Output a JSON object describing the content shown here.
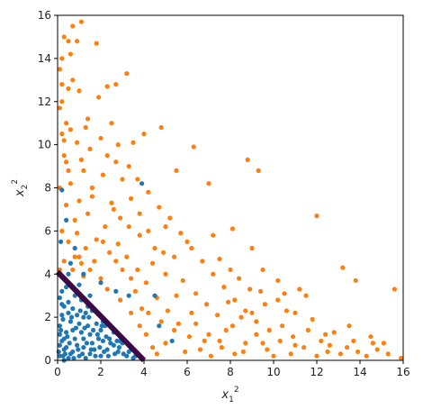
{
  "chart_data": {
    "type": "scatter",
    "title": "",
    "xlabel": "x",
    "xlabel_sub": "1",
    "xlabel_sup": "2",
    "ylabel": "x",
    "ylabel_sub": "2",
    "ylabel_sup": "2",
    "xlim": [
      0,
      16
    ],
    "ylim": [
      0,
      16
    ],
    "xticks": [
      "0",
      "2",
      "4",
      "6",
      "8",
      "10",
      "12",
      "14",
      "16"
    ],
    "yticks": [
      "0",
      "2",
      "4",
      "6",
      "8",
      "10",
      "12",
      "14",
      "16"
    ],
    "grid": false,
    "legend": "none",
    "colors": {
      "class_inner": "#1f77b4",
      "class_outer": "#ff7f0e",
      "boundary": "#3b0a45"
    },
    "series": [
      {
        "values": [
          [
            0.1,
            0.2
          ],
          [
            0.3,
            0.5
          ],
          [
            0.5,
            0.1
          ],
          [
            0.2,
            0.9
          ],
          [
            0.7,
            0.4
          ],
          [
            1.0,
            0.2
          ],
          [
            0.4,
            1.3
          ],
          [
            0.1,
            1.6
          ],
          [
            0.8,
            1.0
          ],
          [
            1.2,
            0.6
          ],
          [
            1.5,
            0.3
          ],
          [
            0.2,
            2.1
          ],
          [
            0.6,
            1.8
          ],
          [
            1.1,
            1.3
          ],
          [
            1.6,
            0.8
          ],
          [
            2.0,
            0.2
          ],
          [
            0.3,
            2.5
          ],
          [
            0.9,
            2.1
          ],
          [
            1.4,
            1.6
          ],
          [
            1.9,
            1.0
          ],
          [
            2.3,
            0.5
          ],
          [
            0.1,
            2.9
          ],
          [
            0.5,
            2.7
          ],
          [
            1.3,
            2.2
          ],
          [
            1.8,
            1.7
          ],
          [
            2.4,
            1.0
          ],
          [
            2.8,
            0.4
          ],
          [
            3.2,
            0.2
          ],
          [
            0.2,
            3.2
          ],
          [
            0.8,
            3.0
          ],
          [
            1.1,
            2.8
          ],
          [
            1.6,
            2.3
          ],
          [
            2.1,
            1.8
          ],
          [
            2.6,
            1.3
          ],
          [
            3.0,
            0.8
          ],
          [
            3.4,
            0.5
          ],
          [
            3.6,
            0.2
          ],
          [
            0.3,
            0.0
          ],
          [
            0.6,
            0.3
          ],
          [
            1.3,
            0.1
          ],
          [
            0.4,
            0.6
          ],
          [
            0.9,
            0.7
          ],
          [
            1.7,
            0.5
          ],
          [
            0.1,
            1.2
          ],
          [
            0.3,
            1.0
          ],
          [
            0.7,
            1.4
          ],
          [
            1.2,
            1.0
          ],
          [
            2.1,
            0.9
          ],
          [
            0.5,
            2.2
          ],
          [
            1.0,
            1.7
          ],
          [
            1.5,
            1.2
          ],
          [
            2.6,
            0.7
          ],
          [
            0.2,
            2.6
          ],
          [
            0.7,
            2.4
          ],
          [
            1.2,
            2.0
          ],
          [
            2.0,
            1.4
          ],
          [
            2.9,
            0.9
          ],
          [
            0.4,
            3.4
          ],
          [
            1.4,
            2.5
          ],
          [
            2.2,
            1.6
          ],
          [
            0.05,
            0.4
          ],
          [
            0.15,
            1.4
          ],
          [
            0.25,
            1.9
          ],
          [
            0.35,
            0.3
          ],
          [
            0.45,
            1.1
          ],
          [
            0.55,
            0.8
          ],
          [
            0.65,
            2.0
          ],
          [
            0.75,
            0.1
          ],
          [
            0.85,
            1.5
          ],
          [
            0.95,
            0.5
          ],
          [
            1.05,
            2.3
          ],
          [
            1.15,
            0.3
          ],
          [
            1.25,
            1.5
          ],
          [
            1.35,
            0.8
          ],
          [
            1.45,
            2.0
          ],
          [
            1.55,
            0.5
          ],
          [
            1.65,
            1.4
          ],
          [
            1.75,
            0.2
          ],
          [
            1.85,
            1.2
          ],
          [
            1.95,
            0.6
          ],
          [
            2.05,
            1.6
          ],
          [
            2.15,
            0.4
          ],
          [
            2.25,
            1.1
          ],
          [
            2.35,
            0.2
          ],
          [
            2.45,
            0.8
          ],
          [
            2.55,
            1.5
          ],
          [
            2.65,
            0.3
          ],
          [
            2.75,
            0.9
          ],
          [
            2.85,
            0.6
          ],
          [
            3.05,
            0.3
          ],
          [
            3.3,
            0.4
          ],
          [
            3.5,
            0.1
          ],
          [
            0.1,
            0.7
          ],
          [
            0.25,
            0.2
          ],
          [
            1.5,
            3.0
          ],
          [
            0.6,
            4.5
          ],
          [
            1.2,
            4.0
          ],
          [
            2.7,
            3.2
          ],
          [
            3.3,
            3.0
          ],
          [
            0.4,
            6.5
          ],
          [
            0.8,
            5.2
          ],
          [
            4.7,
            1.6
          ],
          [
            3.9,
            8.2
          ],
          [
            0.2,
            7.9
          ],
          [
            5.3,
            0.9
          ],
          [
            4.5,
            3.0
          ],
          [
            1.0,
            3.5
          ],
          [
            0.15,
            5.5
          ],
          [
            2.0,
            3.6
          ],
          [
            0.5,
            4.0
          ]
        ]
      },
      {
        "values": [
          [
            0.1,
            13.5
          ],
          [
            0.2,
            12.0
          ],
          [
            0.4,
            11.0
          ],
          [
            0.3,
            9.5
          ],
          [
            0.5,
            8.8
          ],
          [
            0.1,
            8.0
          ],
          [
            0.6,
            14.2
          ],
          [
            0.3,
            15.0
          ],
          [
            1.1,
            15.7
          ],
          [
            0.9,
            14.8
          ],
          [
            0.7,
            13.0
          ],
          [
            0.2,
            10.5
          ],
          [
            0.4,
            7.2
          ],
          [
            0.2,
            6.0
          ],
          [
            0.8,
            6.5
          ],
          [
            0.5,
            5.5
          ],
          [
            1.0,
            4.8
          ],
          [
            1.5,
            4.2
          ],
          [
            2.0,
            3.8
          ],
          [
            0.3,
            4.6
          ],
          [
            0.7,
            4.2
          ],
          [
            1.2,
            3.9
          ],
          [
            0.1,
            4.2
          ],
          [
            1.0,
            12.5
          ],
          [
            1.3,
            10.8
          ],
          [
            1.5,
            9.8
          ],
          [
            2.0,
            10.3
          ],
          [
            2.5,
            11.0
          ],
          [
            3.2,
            13.3
          ],
          [
            2.7,
            12.8
          ],
          [
            1.8,
            14.7
          ],
          [
            2.3,
            12.7
          ],
          [
            2.7,
            9.2
          ],
          [
            3.5,
            10.1
          ],
          [
            4.0,
            10.5
          ],
          [
            4.8,
            10.8
          ],
          [
            5.5,
            8.8
          ],
          [
            6.3,
            9.9
          ],
          [
            7.0,
            8.2
          ],
          [
            5.0,
            6.2
          ],
          [
            6.0,
            5.5
          ],
          [
            7.2,
            5.8
          ],
          [
            7.5,
            4.7
          ],
          [
            8.0,
            4.2
          ],
          [
            9.3,
            8.8
          ],
          [
            8.8,
            9.3
          ],
          [
            8.1,
            6.1
          ],
          [
            9.0,
            5.2
          ],
          [
            9.5,
            4.2
          ],
          [
            10.2,
            3.7
          ],
          [
            11.5,
            3.0
          ],
          [
            12.0,
            6.7
          ],
          [
            13.2,
            4.3
          ],
          [
            13.8,
            3.7
          ],
          [
            15.6,
            3.3
          ],
          [
            15.9,
            0.1
          ],
          [
            14.6,
            0.8
          ],
          [
            13.5,
            1.6
          ],
          [
            12.4,
            1.2
          ],
          [
            11.0,
            2.2
          ],
          [
            10.2,
            2.8
          ],
          [
            9.4,
            3.2
          ],
          [
            8.5,
            2.0
          ],
          [
            7.8,
            1.4
          ],
          [
            6.8,
            0.9
          ],
          [
            6.2,
            2.2
          ],
          [
            5.5,
            3.0
          ],
          [
            5.0,
            4.0
          ],
          [
            4.5,
            5.2
          ],
          [
            4.2,
            6.0
          ],
          [
            3.8,
            6.8
          ],
          [
            3.4,
            7.5
          ],
          [
            3.0,
            8.4
          ],
          [
            2.6,
            7.0
          ],
          [
            2.2,
            6.2
          ],
          [
            1.8,
            5.6
          ],
          [
            1.4,
            6.8
          ],
          [
            1.0,
            7.4
          ],
          [
            0.6,
            8.2
          ],
          [
            1.2,
            8.8
          ],
          [
            1.6,
            8.0
          ],
          [
            2.1,
            8.6
          ],
          [
            2.8,
            5.4
          ],
          [
            3.2,
            4.8
          ],
          [
            3.7,
            4.2
          ],
          [
            4.1,
            3.6
          ],
          [
            4.6,
            2.9
          ],
          [
            5.1,
            2.3
          ],
          [
            5.6,
            1.7
          ],
          [
            6.1,
            1.1
          ],
          [
            6.6,
            0.5
          ],
          [
            7.1,
            0.2
          ],
          [
            7.6,
            0.6
          ],
          [
            8.2,
            0.3
          ],
          [
            8.7,
            0.8
          ],
          [
            9.2,
            1.2
          ],
          [
            9.7,
            0.5
          ],
          [
            10.3,
            0.9
          ],
          [
            10.8,
            0.3
          ],
          [
            11.4,
            0.6
          ],
          [
            12.0,
            0.2
          ],
          [
            12.6,
            0.7
          ],
          [
            13.1,
            0.3
          ],
          [
            13.7,
            0.9
          ],
          [
            14.3,
            0.2
          ],
          [
            14.8,
            0.5
          ],
          [
            15.3,
            0.3
          ],
          [
            4.1,
            1.2
          ],
          [
            4.4,
            0.6
          ],
          [
            4.8,
            1.8
          ],
          [
            3.9,
            2.4
          ],
          [
            3.6,
            3.2
          ],
          [
            3.4,
            3.8
          ],
          [
            3.0,
            4.2
          ],
          [
            2.7,
            4.6
          ],
          [
            2.4,
            5.0
          ],
          [
            2.1,
            5.5
          ],
          [
            1.7,
            4.6
          ],
          [
            1.3,
            5.2
          ],
          [
            0.9,
            5.9
          ],
          [
            0.4,
            9.2
          ],
          [
            0.9,
            10.1
          ],
          [
            1.4,
            11.2
          ],
          [
            1.9,
            12.2
          ],
          [
            0.5,
            12.6
          ],
          [
            0.2,
            14.0
          ],
          [
            0.7,
            15.5
          ],
          [
            0.1,
            11.7
          ],
          [
            0.3,
            10.2
          ],
          [
            2.3,
            9.5
          ],
          [
            2.8,
            10.0
          ],
          [
            3.3,
            9.0
          ],
          [
            3.7,
            8.4
          ],
          [
            4.2,
            7.8
          ],
          [
            4.7,
            7.1
          ],
          [
            5.2,
            6.6
          ],
          [
            5.7,
            5.9
          ],
          [
            6.2,
            5.2
          ],
          [
            6.7,
            4.6
          ],
          [
            7.2,
            4.0
          ],
          [
            7.7,
            3.4
          ],
          [
            8.2,
            2.8
          ],
          [
            8.7,
            2.3
          ],
          [
            9.2,
            1.8
          ],
          [
            9.8,
            1.4
          ],
          [
            10.4,
            1.6
          ],
          [
            10.9,
            1.1
          ],
          [
            11.6,
            1.4
          ],
          [
            12.2,
            0.9
          ],
          [
            12.8,
            1.3
          ],
          [
            13.4,
            0.6
          ],
          [
            13.9,
            0.4
          ],
          [
            14.5,
            1.1
          ],
          [
            15.1,
            0.8
          ],
          [
            5.8,
            3.7
          ],
          [
            6.4,
            3.1
          ],
          [
            6.9,
            2.6
          ],
          [
            7.4,
            2.1
          ],
          [
            7.9,
            2.7
          ],
          [
            8.4,
            3.8
          ],
          [
            8.9,
            3.3
          ],
          [
            9.6,
            2.6
          ],
          [
            10.6,
            2.3
          ],
          [
            11.2,
            3.3
          ],
          [
            4.4,
            4.5
          ],
          [
            4.9,
            5.0
          ],
          [
            5.4,
            4.8
          ],
          [
            3.8,
            5.8
          ],
          [
            3.3,
            6.2
          ],
          [
            2.9,
            6.6
          ],
          [
            2.5,
            7.3
          ],
          [
            1.6,
            7.6
          ],
          [
            1.1,
            9.3
          ],
          [
            0.6,
            10.7
          ],
          [
            0.2,
            12.8
          ],
          [
            0.5,
            14.8
          ],
          [
            0.4,
            3.7
          ],
          [
            0.8,
            4.8
          ],
          [
            1.1,
            4.5
          ],
          [
            2.3,
            3.3
          ],
          [
            2.9,
            2.8
          ],
          [
            3.4,
            2.2
          ],
          [
            3.8,
            1.6
          ],
          [
            4.2,
            2.2
          ],
          [
            4.6,
            0.3
          ],
          [
            5.0,
            0.8
          ],
          [
            5.4,
            1.4
          ],
          [
            5.9,
            0.4
          ],
          [
            6.4,
            1.7
          ],
          [
            7.0,
            1.2
          ],
          [
            7.5,
            0.9
          ],
          [
            8.1,
            1.6
          ],
          [
            8.6,
            0.4
          ],
          [
            9.0,
            2.2
          ],
          [
            9.5,
            0.8
          ],
          [
            10.0,
            0.2
          ],
          [
            10.5,
            3.1
          ],
          [
            11.0,
            0.7
          ],
          [
            11.8,
            1.9
          ],
          [
            12.5,
            0.4
          ]
        ]
      }
    ],
    "boundary": {
      "x": [
        0,
        4.0
      ],
      "y": [
        4.1,
        0
      ]
    }
  }
}
